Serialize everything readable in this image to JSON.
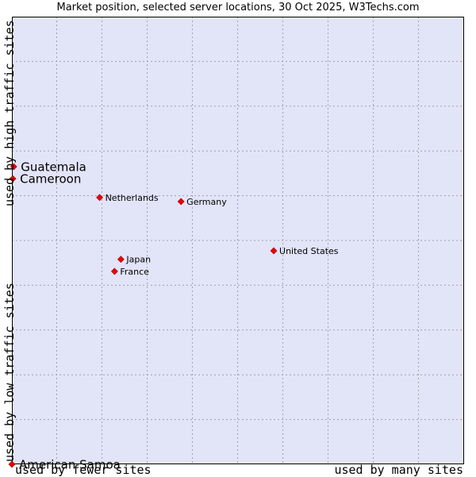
{
  "chart_data": {
    "type": "scatter",
    "title": "Market position, selected server locations, 30 Oct 2025, W3Techs.com",
    "x_axis": {
      "low_label": "used by fewer sites",
      "high_label": "used by many sites",
      "range": [
        0,
        100
      ]
    },
    "y_axis": {
      "low_label": "used by low traffic sites",
      "high_label": "used by high traffic sites",
      "range": [
        0,
        100
      ]
    },
    "grid": true,
    "points": [
      {
        "name": "Guatemala",
        "x": 0.4,
        "y": 66.5,
        "highlight": true
      },
      {
        "name": "Cameroon",
        "x": 0.2,
        "y": 63.8,
        "highlight": true
      },
      {
        "name": "Netherlands",
        "x": 19.4,
        "y": 59.6,
        "highlight": false
      },
      {
        "name": "Germany",
        "x": 37.4,
        "y": 58.7,
        "highlight": false
      },
      {
        "name": "United States",
        "x": 57.9,
        "y": 47.7,
        "highlight": false
      },
      {
        "name": "Japan",
        "x": 24.1,
        "y": 45.8,
        "highlight": false
      },
      {
        "name": "France",
        "x": 22.7,
        "y": 43.1,
        "highlight": false
      },
      {
        "name": "American Samoa",
        "x": 0.0,
        "y": 0.0,
        "highlight": true
      }
    ],
    "colors": {
      "plot_bg": "#e2e4f8",
      "grid": "#a0a0b4",
      "marker": "#ee0000",
      "marker_edge": "#990000"
    }
  }
}
